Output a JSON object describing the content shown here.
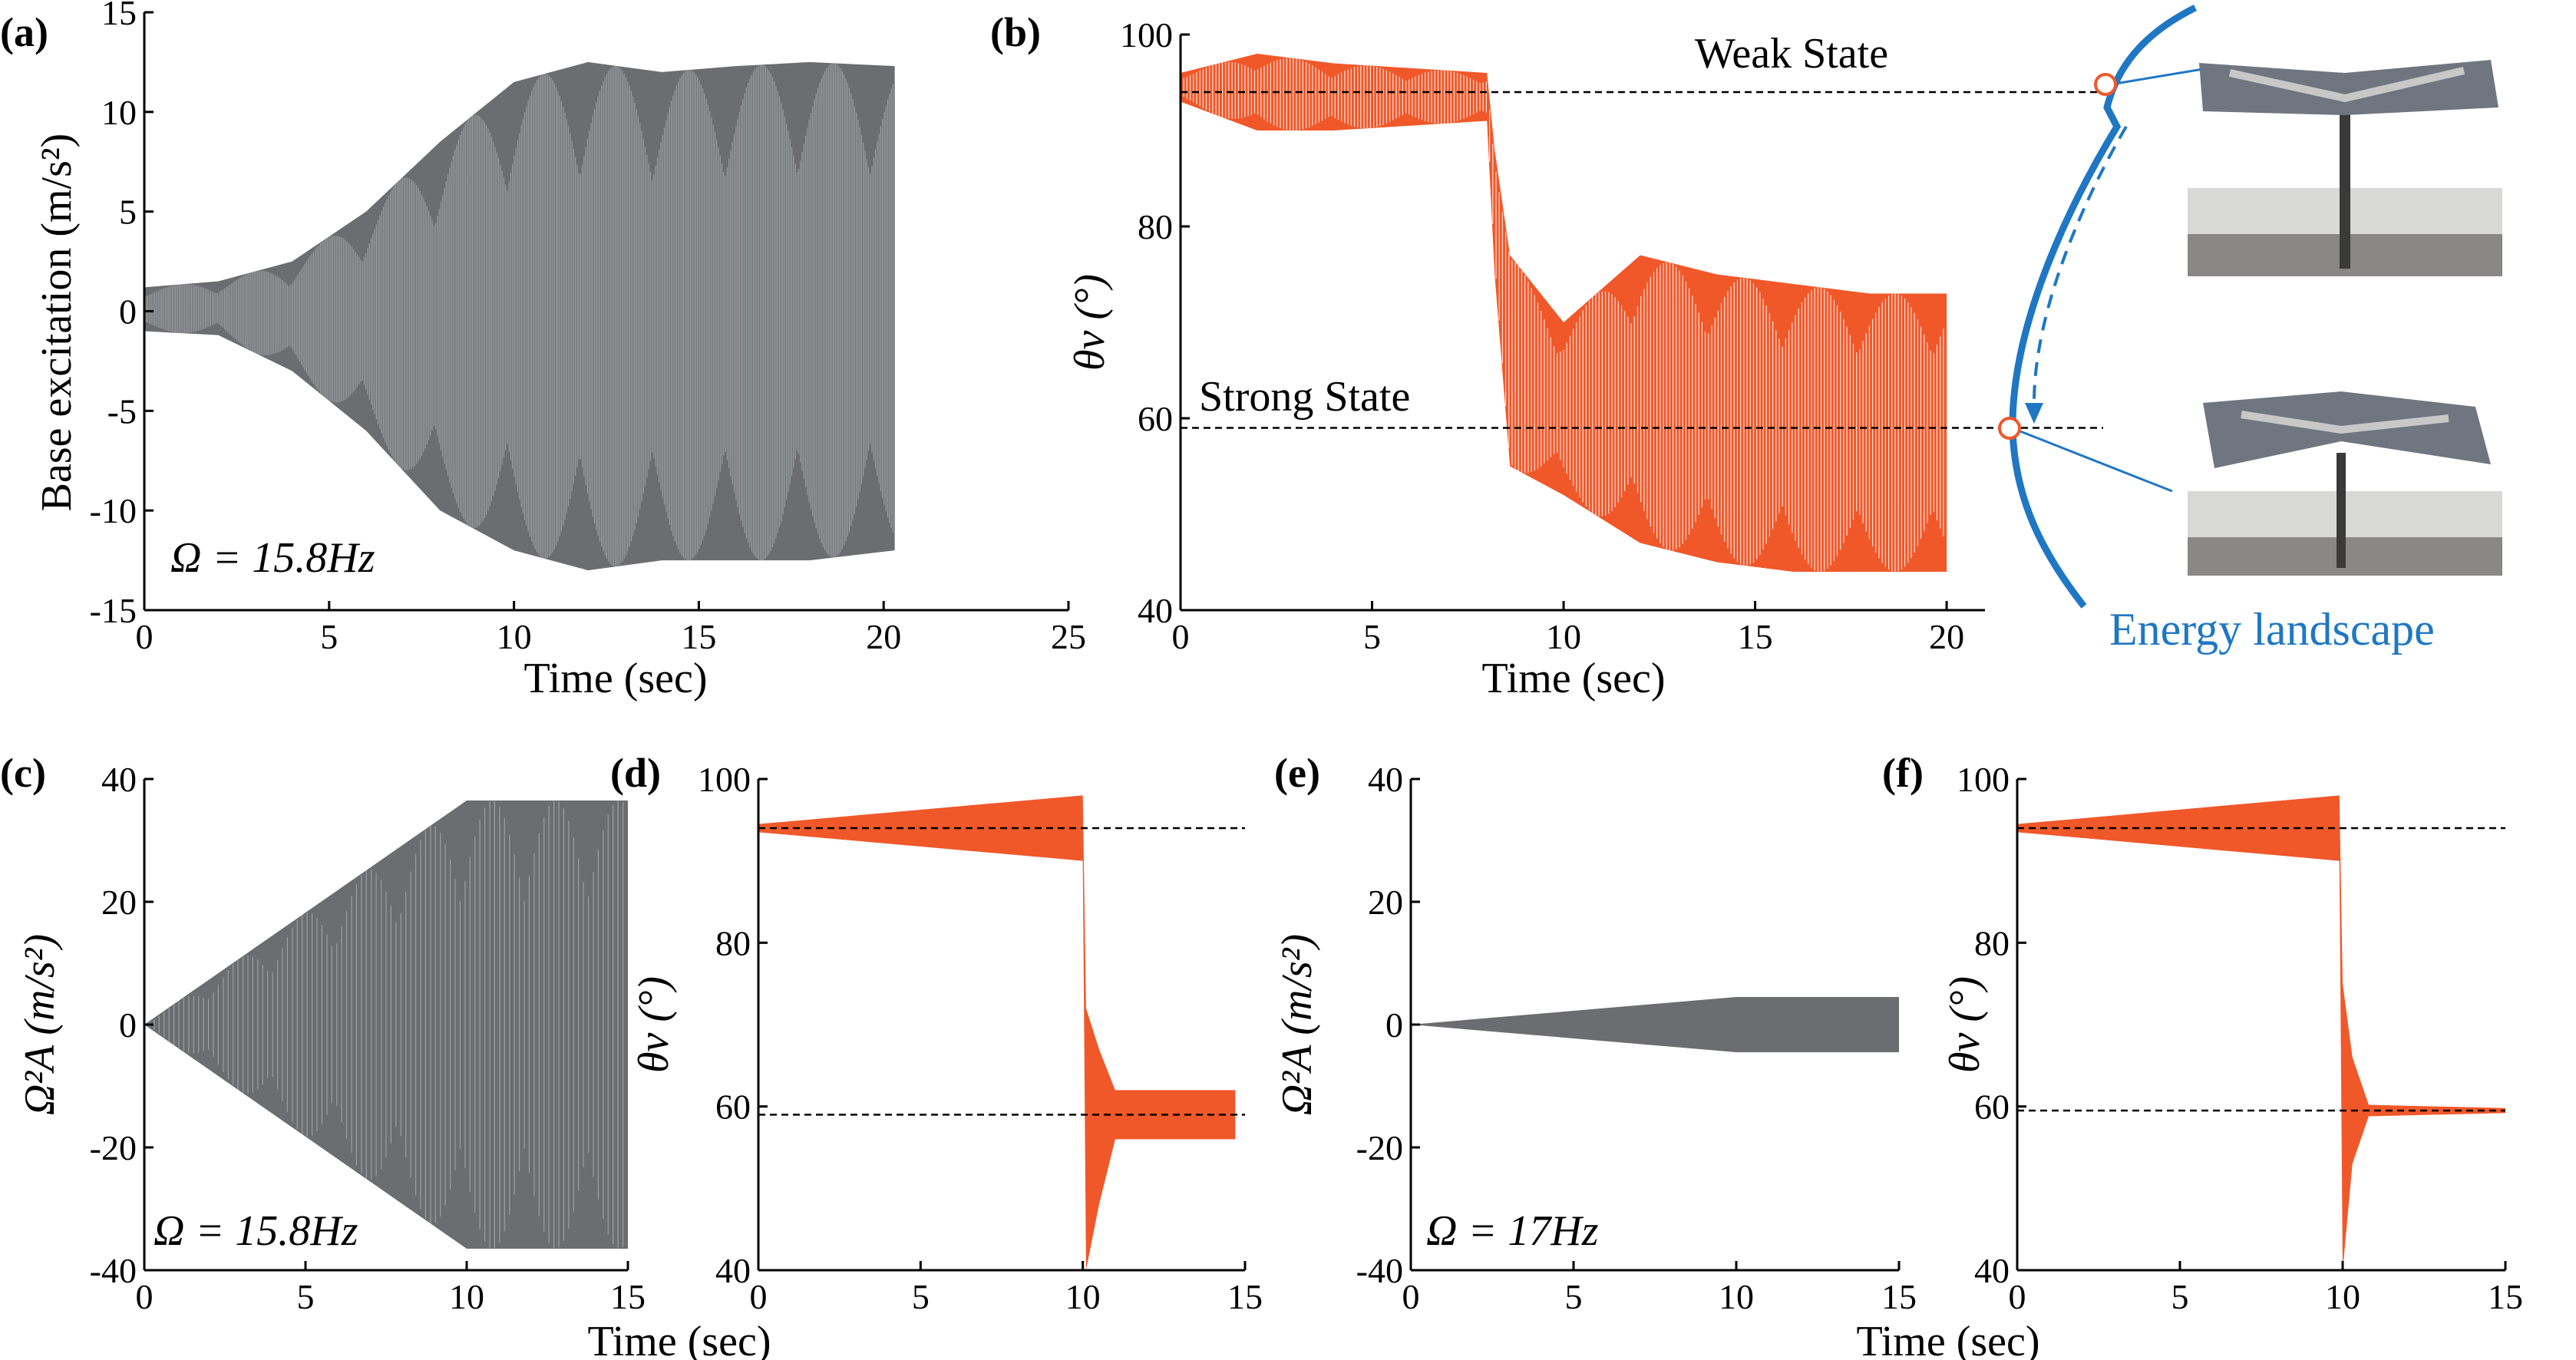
{
  "colors": {
    "gray": "#6b6d70",
    "gray_light": "#a9abae",
    "orange": "#f0582a",
    "blue": "#1f77c4",
    "marker_fill": "#ffffff"
  },
  "chart_data": [
    {
      "id": "a",
      "panel_label": "(a)",
      "type": "line",
      "title": "",
      "xlabel": "Time (sec)",
      "ylabel": "Base excitation (m/s²)",
      "xlim": [
        0,
        25
      ],
      "ylim": [
        -15,
        15
      ],
      "xticks": [
        0,
        5,
        10,
        15,
        20,
        25
      ],
      "yticks": [
        -15,
        -10,
        -5,
        0,
        5,
        10,
        15
      ],
      "annotation": "Ω = 15.8Hz",
      "series": [
        {
          "name": "base excitation envelope",
          "x": [
            0,
            2,
            4,
            6,
            8,
            10,
            12,
            14,
            16,
            18,
            20.3
          ],
          "upper": [
            1.2,
            1.5,
            2.5,
            5,
            8.5,
            11.5,
            12.5,
            12,
            12.3,
            12.5,
            12.3
          ],
          "lower": [
            -1.0,
            -1.2,
            -3,
            -6,
            -10,
            -12,
            -13,
            -12.5,
            -12.5,
            -12.5,
            -12.0
          ]
        }
      ]
    },
    {
      "id": "b",
      "panel_label": "(b)",
      "type": "line",
      "xlabel": "Time (sec)",
      "ylabel": "θv (°)",
      "xlim": [
        0,
        21
      ],
      "ylim": [
        40,
        100
      ],
      "xticks": [
        0,
        5,
        10,
        15,
        20
      ],
      "yticks": [
        40,
        60,
        80,
        100
      ],
      "reference_lines": [
        {
          "y": 94,
          "label": "Weak State"
        },
        {
          "y": 59,
          "label": "Strong State"
        }
      ],
      "series": [
        {
          "name": "θv response",
          "x": [
            0,
            2,
            4,
            6,
            8,
            8.2,
            8.6,
            10,
            12,
            14,
            16,
            18,
            20
          ],
          "upper": [
            96,
            98,
            97,
            96.5,
            96,
            88,
            77,
            70,
            77,
            75,
            74,
            73,
            73
          ],
          "lower": [
            93,
            90,
            90,
            90.5,
            91,
            75,
            55,
            52,
            47,
            45,
            44,
            44,
            44
          ]
        }
      ]
    },
    {
      "id": "c",
      "panel_label": "(c)",
      "type": "line",
      "xlabel": "Time (sec)",
      "ylabel": "Ω²A (m/s²)",
      "xlim": [
        0,
        15
      ],
      "ylim": [
        -40,
        40
      ],
      "xticks": [
        0,
        5,
        10,
        15
      ],
      "yticks": [
        -40,
        -20,
        0,
        20,
        40
      ],
      "annotation": "Ω = 15.8Hz",
      "series": [
        {
          "name": "Ω²A envelope",
          "x": [
            0,
            10,
            15
          ],
          "upper": [
            0,
            36.5,
            36.5
          ],
          "lower": [
            0,
            -36.5,
            -36.5
          ]
        }
      ]
    },
    {
      "id": "d",
      "panel_label": "(d)",
      "type": "line",
      "xlabel": "Time (sec)",
      "ylabel": "θv (°)",
      "xlim": [
        0,
        15
      ],
      "ylim": [
        40,
        100
      ],
      "xticks": [
        0,
        5,
        10,
        15
      ],
      "yticks": [
        40,
        60,
        80,
        100
      ],
      "reference_lines": [
        {
          "y": 94
        },
        {
          "y": 59
        }
      ],
      "series": [
        {
          "name": "θv response",
          "x": [
            0,
            10,
            10.1,
            10.5,
            11,
            14.7
          ],
          "upper": [
            94.5,
            98,
            72,
            67,
            62,
            62
          ],
          "lower": [
            93.5,
            90,
            40,
            48,
            56,
            56
          ]
        }
      ]
    },
    {
      "id": "e",
      "panel_label": "(e)",
      "type": "line",
      "xlabel": "",
      "ylabel": "Ω²A (m/s²)",
      "xlim": [
        0,
        15
      ],
      "ylim": [
        -40,
        40
      ],
      "xticks": [
        0,
        5,
        10,
        15
      ],
      "yticks": [
        -40,
        -20,
        0,
        20,
        40
      ],
      "annotation": "Ω = 17Hz",
      "series": [
        {
          "name": "Ω²A envelope",
          "x": [
            0,
            10,
            15
          ],
          "upper": [
            0,
            4.5,
            4.5
          ],
          "lower": [
            0,
            -4.5,
            -4.5
          ]
        }
      ]
    },
    {
      "id": "f",
      "panel_label": "(f)",
      "type": "line",
      "xlabel": "Time (sec)",
      "ylabel": "θv (°)",
      "xlim": [
        0,
        15
      ],
      "ylim": [
        40,
        100
      ],
      "xticks": [
        0,
        5,
        10,
        15
      ],
      "yticks": [
        40,
        60,
        80,
        100
      ],
      "reference_lines": [
        {
          "y": 94
        },
        {
          "y": 59.5
        }
      ],
      "series": [
        {
          "name": "θv response",
          "x": [
            0,
            9.9,
            10,
            10.3,
            10.8,
            15
          ],
          "upper": [
            94.5,
            98,
            75,
            66,
            60.2,
            59.8
          ],
          "lower": [
            93.5,
            90,
            40,
            53,
            58.8,
            59.2
          ]
        }
      ]
    }
  ],
  "landscape": {
    "label": "Energy landscape",
    "weak_state": "Weak State",
    "strong_state": "Strong State",
    "photo_top": "weak-state-photo",
    "photo_bottom": "strong-state-photo"
  }
}
